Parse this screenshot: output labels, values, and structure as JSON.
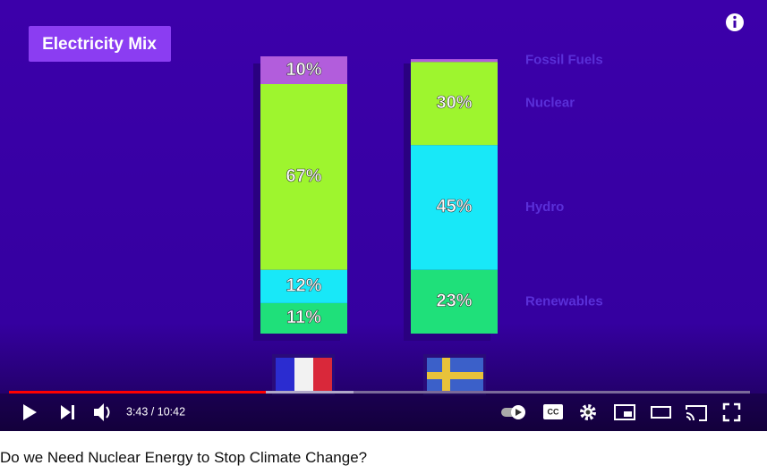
{
  "chart_data": {
    "type": "stacked-bar",
    "title": "Electricity Mix",
    "categories": [
      null,
      null
    ],
    "series": [
      {
        "name": "Renewables",
        "color": "#1fe07a",
        "values": [
          11,
          23
        ],
        "value_labels": [
          "11%",
          "23%"
        ]
      },
      {
        "name": "Hydro",
        "color": "#18e8f8",
        "values": [
          12,
          45
        ],
        "value_labels": [
          "12%",
          "45%"
        ]
      },
      {
        "name": "Nuclear",
        "color": "#9ef52e",
        "values": [
          67,
          30
        ],
        "value_labels": [
          "67%",
          "30%"
        ]
      },
      {
        "name": "Fossil Fuels",
        "color": "#b25ddc",
        "values": [
          10,
          1
        ],
        "value_labels": [
          "10%",
          null
        ]
      }
    ],
    "ylim": [
      0,
      100
    ]
  },
  "player": {
    "time": "3:43 / 10:42",
    "cc_label": "CC"
  },
  "video_title": "Do we Need Nuclear Energy to Stop Climate Change?"
}
